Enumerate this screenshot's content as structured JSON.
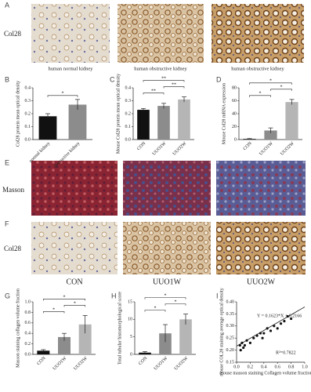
{
  "panel_a": {
    "label": "A",
    "row_label": "Col28",
    "captions": [
      "human normal kidney",
      "human obstructive  kidney",
      "human obstructive kidney"
    ]
  },
  "panel_e": {
    "label": "E",
    "row_label": "Masson"
  },
  "panel_f": {
    "label": "F",
    "row_label": "Col28",
    "captions": [
      "CON",
      "UUO1W",
      "UUO2W"
    ]
  },
  "chart_data": [
    {
      "type": "bar",
      "label": "B",
      "ylabel": "Col28 protein mean optical density",
      "categories": [
        "normal kidney",
        "obstructive kidney"
      ],
      "values": [
        0.18,
        0.27
      ],
      "errors": [
        0.02,
        0.04
      ],
      "colors": [
        "#111111",
        "#8c8c8c"
      ],
      "ylim": [
        0,
        0.4
      ],
      "yticks": [
        {
          "value": 0,
          "label": "0.0"
        },
        0.1,
        0.2,
        0.3,
        0.4
      ],
      "annotations": [
        {
          "text": "*",
          "pair": [
            0,
            1
          ]
        }
      ]
    },
    {
      "type": "bar",
      "label": "C",
      "ylabel": "Mouse Col28 protein mean optical density",
      "categories": [
        "CON",
        "UUO1W",
        "UUO2W"
      ],
      "values": [
        0.23,
        0.26,
        0.31
      ],
      "errors": [
        0.01,
        0.02,
        0.02
      ],
      "colors": [
        "#111111",
        "#8c8c8c",
        "#b5b5b5"
      ],
      "ylim": [
        0,
        0.4
      ],
      "yticks": [
        {
          "value": 0,
          "label": "0.0"
        },
        0.1,
        0.2,
        0.3,
        0.4
      ],
      "annotations": [
        {
          "text": "**",
          "pair": [
            0,
            1
          ]
        },
        {
          "text": "**",
          "pair": [
            1,
            2
          ]
        },
        {
          "text": "**",
          "pair": [
            0,
            2
          ]
        }
      ]
    },
    {
      "type": "bar",
      "label": "D",
      "ylabel": "Mouse Col28 mRNA expression",
      "categories": [
        "CON",
        "UUO1W",
        "UUO2W"
      ],
      "values": [
        1,
        14,
        58
      ],
      "errors": [
        0.5,
        4,
        4
      ],
      "colors": [
        "#111111",
        "#8c8c8c",
        "#b5b5b5"
      ],
      "ylim": [
        0,
        80
      ],
      "yticks": [
        0,
        20,
        40,
        60,
        80
      ],
      "annotations": [
        {
          "text": "*",
          "pair": [
            0,
            1
          ]
        },
        {
          "text": "*",
          "pair": [
            1,
            2
          ]
        },
        {
          "text": "*",
          "pair": [
            0,
            2
          ]
        }
      ]
    },
    {
      "type": "bar",
      "label": "G",
      "ylabel": "Masson staining collagen volume fraction",
      "categories": [
        "CON",
        "UUO1W",
        "UUO2W"
      ],
      "values": [
        0.07,
        0.33,
        0.57
      ],
      "errors": [
        0.02,
        0.07,
        0.17
      ],
      "colors": [
        "#111111",
        "#8c8c8c",
        "#b5b5b5"
      ],
      "ylim": [
        0,
        1
      ],
      "yticks": [
        {
          "value": 0,
          "label": "0.0"
        },
        0.2,
        0.4,
        0.6,
        0.8,
        {
          "value": 1,
          "label": "1.0"
        }
      ],
      "annotations": [
        {
          "text": "*",
          "pair": [
            0,
            1
          ]
        },
        {
          "text": "*",
          "pair": [
            1,
            2
          ]
        },
        {
          "text": "*",
          "pair": [
            0,
            2
          ]
        }
      ]
    },
    {
      "type": "bar",
      "label": "H",
      "ylabel": "Total tubular histomorphological score",
      "categories": [
        "CON",
        "UUO1W",
        "UUO2W"
      ],
      "values": [
        0.5,
        6,
        10
      ],
      "errors": [
        0.3,
        2.5,
        1.5
      ],
      "colors": [
        "#111111",
        "#8c8c8c",
        "#b5b5b5"
      ],
      "ylim": [
        0,
        15
      ],
      "yticks": [
        0,
        5,
        10,
        15
      ],
      "annotations": [
        {
          "text": "*",
          "pair": [
            0,
            1
          ]
        },
        {
          "text": "*",
          "pair": [
            1,
            2
          ]
        },
        {
          "text": "*",
          "pair": [
            0,
            2
          ]
        }
      ]
    },
    {
      "type": "scatter",
      "label": "I",
      "ylabel": "mouse COL28 staining average optical density",
      "xlabel": "mouse masson staining Collagen volume fraction",
      "x": [
        0.05,
        0.06,
        0.08,
        0.1,
        0.12,
        0.15,
        0.2,
        0.25,
        0.3,
        0.35,
        0.38,
        0.4,
        0.45,
        0.5,
        0.55,
        0.6,
        0.65,
        0.7,
        0.75,
        0.8
      ],
      "y": [
        0.22,
        0.2,
        0.23,
        0.21,
        0.22,
        0.24,
        0.23,
        0.25,
        0.26,
        0.27,
        0.25,
        0.27,
        0.29,
        0.28,
        0.3,
        0.29,
        0.31,
        0.32,
        0.34,
        0.33
      ],
      "color": "#111111",
      "fit": {
        "slope": 0.1623,
        "intercept": 0.2166
      },
      "equation": "Y = 0.1623*X + 0.2166",
      "r_squared": "R²=0.7822",
      "xlim": [
        0,
        1
      ],
      "xticks": [
        {
          "value": 0,
          "label": "0.0"
        },
        0.2,
        0.4,
        0.6,
        0.8,
        {
          "value": 1,
          "label": "1.0"
        }
      ],
      "ylim": [
        0.15,
        0.4
      ],
      "yticks": [
        0.15,
        {
          "value": 0.2,
          "label": "0.20"
        },
        0.25,
        {
          "value": 0.3,
          "label": "0.30"
        },
        0.35,
        {
          "value": 0.4,
          "label": "0.40"
        }
      ]
    }
  ]
}
